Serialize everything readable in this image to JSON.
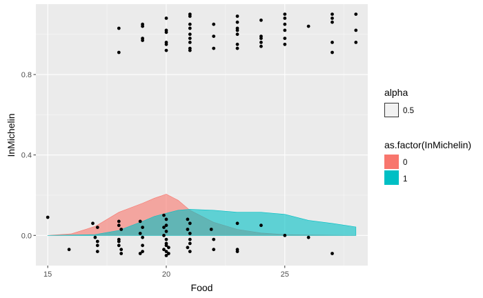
{
  "chart_data": {
    "type": "scatter",
    "xlabel": "Food",
    "ylabel": "InMichelin",
    "xlim": [
      14.5,
      28.5
    ],
    "ylim": [
      -0.15,
      1.15
    ],
    "x_ticks": [
      15,
      20,
      25
    ],
    "x_tick_labels": [
      "15",
      "20",
      "25"
    ],
    "y_ticks": [
      0.0,
      0.4,
      0.8
    ],
    "y_tick_labels": [
      "0.0",
      "0.4",
      "0.8"
    ],
    "grid": true,
    "legend": {
      "placement": "right",
      "alpha": {
        "title": "alpha",
        "label": "0.5"
      },
      "fill": {
        "title": "as.factor(InMichelin)",
        "entries": [
          {
            "label": "0",
            "color": "#F8766D"
          },
          {
            "label": "1",
            "color": "#00BFC4"
          }
        ]
      }
    },
    "points": [
      {
        "x": 15.0,
        "y": 0.09
      },
      {
        "x": 15.9,
        "y": -0.07
      },
      {
        "x": 16.9,
        "y": 0.06
      },
      {
        "x": 17.0,
        "y": -0.01
      },
      {
        "x": 17.1,
        "y": 0.04
      },
      {
        "x": 17.1,
        "y": -0.03
      },
      {
        "x": 17.1,
        "y": -0.08
      },
      {
        "x": 17.1,
        "y": -0.05
      },
      {
        "x": 18.0,
        "y": 0.07
      },
      {
        "x": 18.0,
        "y": 0.05
      },
      {
        "x": 18.1,
        "y": 0.03
      },
      {
        "x": 18.0,
        "y": -0.02
      },
      {
        "x": 18.0,
        "y": -0.03
      },
      {
        "x": 18.0,
        "y": -0.05
      },
      {
        "x": 18.1,
        "y": -0.07
      },
      {
        "x": 18.1,
        "y": -0.09
      },
      {
        "x": 18.9,
        "y": 0.07
      },
      {
        "x": 19.0,
        "y": 0.04
      },
      {
        "x": 18.9,
        "y": 0.01
      },
      {
        "x": 19.0,
        "y": -0.01
      },
      {
        "x": 19.0,
        "y": -0.05
      },
      {
        "x": 19.0,
        "y": -0.08
      },
      {
        "x": 18.9,
        "y": -0.09
      },
      {
        "x": 19.9,
        "y": 0.1
      },
      {
        "x": 20.0,
        "y": 0.08
      },
      {
        "x": 20.0,
        "y": 0.05
      },
      {
        "x": 19.9,
        "y": 0.04
      },
      {
        "x": 20.0,
        "y": 0.02
      },
      {
        "x": 19.9,
        "y": 0.0
      },
      {
        "x": 20.0,
        "y": -0.02
      },
      {
        "x": 20.0,
        "y": -0.04
      },
      {
        "x": 20.0,
        "y": -0.05
      },
      {
        "x": 20.1,
        "y": -0.06
      },
      {
        "x": 19.9,
        "y": -0.07
      },
      {
        "x": 20.0,
        "y": -0.08
      },
      {
        "x": 20.1,
        "y": -0.09
      },
      {
        "x": 20.0,
        "y": -0.1
      },
      {
        "x": 20.9,
        "y": 0.08
      },
      {
        "x": 21.0,
        "y": 0.06
      },
      {
        "x": 20.9,
        "y": 0.03
      },
      {
        "x": 21.0,
        "y": 0.01
      },
      {
        "x": 21.0,
        "y": -0.02
      },
      {
        "x": 21.0,
        "y": -0.04
      },
      {
        "x": 20.9,
        "y": -0.06
      },
      {
        "x": 21.0,
        "y": -0.08
      },
      {
        "x": 21.9,
        "y": 0.03
      },
      {
        "x": 22.0,
        "y": -0.02
      },
      {
        "x": 22.0,
        "y": -0.07
      },
      {
        "x": 23.0,
        "y": 0.06
      },
      {
        "x": 23.0,
        "y": -0.07
      },
      {
        "x": 23.0,
        "y": -0.08
      },
      {
        "x": 24.0,
        "y": 0.05
      },
      {
        "x": 25.0,
        "y": 0.0
      },
      {
        "x": 26.0,
        "y": -0.01
      },
      {
        "x": 27.0,
        "y": -0.09
      },
      {
        "x": 18.0,
        "y": 1.03
      },
      {
        "x": 18.0,
        "y": 0.91
      },
      {
        "x": 19.0,
        "y": 1.05
      },
      {
        "x": 19.0,
        "y": 1.04
      },
      {
        "x": 19.0,
        "y": 0.97
      },
      {
        "x": 19.0,
        "y": 0.98
      },
      {
        "x": 20.0,
        "y": 1.08
      },
      {
        "x": 20.0,
        "y": 1.02
      },
      {
        "x": 20.0,
        "y": 1.01
      },
      {
        "x": 20.0,
        "y": 0.96
      },
      {
        "x": 20.0,
        "y": 0.95
      },
      {
        "x": 20.0,
        "y": 0.92
      },
      {
        "x": 21.0,
        "y": 1.1
      },
      {
        "x": 21.0,
        "y": 1.09
      },
      {
        "x": 21.0,
        "y": 1.05
      },
      {
        "x": 21.0,
        "y": 1.03
      },
      {
        "x": 21.0,
        "y": 1.0
      },
      {
        "x": 21.0,
        "y": 0.98
      },
      {
        "x": 21.0,
        "y": 0.96
      },
      {
        "x": 21.0,
        "y": 0.93
      },
      {
        "x": 21.0,
        "y": 0.92
      },
      {
        "x": 22.0,
        "y": 1.05
      },
      {
        "x": 22.0,
        "y": 0.99
      },
      {
        "x": 22.0,
        "y": 0.93
      },
      {
        "x": 23.0,
        "y": 1.09
      },
      {
        "x": 23.0,
        "y": 1.06
      },
      {
        "x": 23.0,
        "y": 1.03
      },
      {
        "x": 23.0,
        "y": 1.02
      },
      {
        "x": 23.0,
        "y": 1.0
      },
      {
        "x": 23.0,
        "y": 0.95
      },
      {
        "x": 23.0,
        "y": 0.93
      },
      {
        "x": 24.0,
        "y": 1.07
      },
      {
        "x": 24.0,
        "y": 0.99
      },
      {
        "x": 24.0,
        "y": 0.98
      },
      {
        "x": 24.0,
        "y": 0.96
      },
      {
        "x": 24.0,
        "y": 0.94
      },
      {
        "x": 25.0,
        "y": 1.1
      },
      {
        "x": 25.0,
        "y": 1.08
      },
      {
        "x": 25.0,
        "y": 1.05
      },
      {
        "x": 25.0,
        "y": 1.02
      },
      {
        "x": 25.0,
        "y": 0.98
      },
      {
        "x": 25.0,
        "y": 0.95
      },
      {
        "x": 26.0,
        "y": 1.04
      },
      {
        "x": 27.0,
        "y": 1.1
      },
      {
        "x": 27.0,
        "y": 1.08
      },
      {
        "x": 27.0,
        "y": 1.06
      },
      {
        "x": 27.0,
        "y": 0.96
      },
      {
        "x": 27.0,
        "y": 0.91
      },
      {
        "x": 28.0,
        "y": 1.1
      },
      {
        "x": 28.0,
        "y": 1.02
      },
      {
        "x": 28.0,
        "y": 0.96
      }
    ],
    "density_series": [
      {
        "name": "0",
        "color": "#F8766D",
        "x": [
          15,
          16,
          17,
          18,
          19,
          19.5,
          20,
          20.5,
          21,
          22,
          23,
          24,
          25,
          26,
          27,
          28
        ],
        "y": [
          0.0,
          0.008,
          0.045,
          0.115,
          0.16,
          0.185,
          0.205,
          0.175,
          0.125,
          0.065,
          0.03,
          0.012,
          0.004,
          0.002,
          0.001,
          0.0
        ]
      },
      {
        "name": "1",
        "color": "#00BFC4",
        "x": [
          15,
          17,
          18,
          19,
          19.5,
          20,
          20.5,
          21,
          22,
          23,
          24,
          25,
          26,
          27,
          28
        ],
        "y": [
          0.0,
          0.004,
          0.025,
          0.07,
          0.095,
          0.11,
          0.125,
          0.13,
          0.125,
          0.115,
          0.115,
          0.105,
          0.075,
          0.06,
          0.042
        ]
      }
    ]
  }
}
